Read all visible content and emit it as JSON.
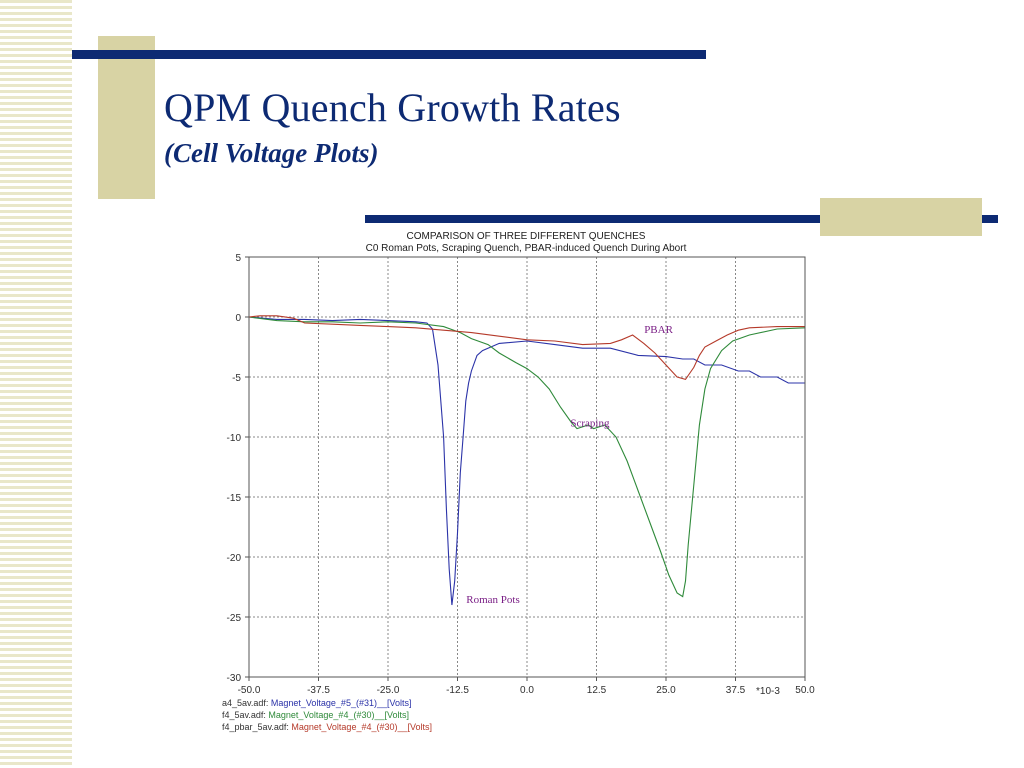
{
  "slide": {
    "title": "QPM Quench Growth Rates",
    "subtitle": "(Cell Voltage Plots)"
  },
  "chart_data": {
    "type": "line",
    "title": "COMPARISON OF THREE DIFFERENT QUENCHES",
    "subtitle": "C0 Roman Pots, Scraping Quench, PBAR-induced Quench During Abort",
    "xlabel": "",
    "ylabel": "",
    "x_multiplier_label": "*10-3",
    "xlim": [
      -50,
      50
    ],
    "ylim": [
      -30,
      5
    ],
    "xticks": [
      -50,
      -37.5,
      -25,
      -12.5,
      0,
      12.5,
      25,
      37.5,
      50
    ],
    "xtick_labels": [
      "-50.0",
      "-37.5",
      "-25.0",
      "-12.5",
      "0.0",
      "12.5",
      "25.0",
      "37.5",
      "50.0"
    ],
    "yticks": [
      5,
      0,
      -5,
      -10,
      -15,
      -20,
      -25,
      -30
    ],
    "ytick_labels": [
      "5",
      "0",
      "-5",
      "-10",
      "-15",
      "-20",
      "-25",
      "-30"
    ],
    "grid": true,
    "legend_position": "bottom-left",
    "series": [
      {
        "name": "a4_5av.adf: Magnet_Voltage_#5_(#31)__[Volts]",
        "legend_file": "a4_5av.adf:",
        "legend_channel": "Magnet_Voltage_#5_(#31)__[Volts]",
        "annotation": "Roman Pots",
        "color": "#2b33a8",
        "points": [
          [
            -50,
            0
          ],
          [
            -45,
            -0.2
          ],
          [
            -40,
            -0.2
          ],
          [
            -35,
            -0.3
          ],
          [
            -30,
            -0.2
          ],
          [
            -25,
            -0.3
          ],
          [
            -20,
            -0.4
          ],
          [
            -18,
            -0.5
          ],
          [
            -17,
            -1
          ],
          [
            -16,
            -4
          ],
          [
            -15,
            -10
          ],
          [
            -14.5,
            -16
          ],
          [
            -14,
            -21
          ],
          [
            -13.5,
            -24
          ],
          [
            -13,
            -22
          ],
          [
            -12.5,
            -18
          ],
          [
            -12,
            -13
          ],
          [
            -11.5,
            -10
          ],
          [
            -11,
            -7
          ],
          [
            -10.5,
            -5.5
          ],
          [
            -10,
            -4.5
          ],
          [
            -9,
            -3.2
          ],
          [
            -8,
            -2.8
          ],
          [
            -5,
            -2.2
          ],
          [
            0,
            -2
          ],
          [
            5,
            -2.3
          ],
          [
            10,
            -2.6
          ],
          [
            15,
            -2.6
          ],
          [
            20,
            -3.2
          ],
          [
            25,
            -3.3
          ],
          [
            28,
            -3.5
          ],
          [
            30,
            -3.5
          ],
          [
            32,
            -4
          ],
          [
            35,
            -4
          ],
          [
            38,
            -4.5
          ],
          [
            40,
            -4.5
          ],
          [
            42,
            -5
          ],
          [
            45,
            -5
          ],
          [
            47,
            -5.5
          ],
          [
            50,
            -5.5
          ]
        ]
      },
      {
        "name": "f4_5av.adf: Magnet_Voltage_#4_(#30)__[Volts]",
        "legend_file": "f4_5av.adf:",
        "legend_channel": "Magnet_Voltage_#4_(#30)__[Volts]",
        "annotation": "Scraping",
        "color": "#2f8a3a",
        "points": [
          [
            -50,
            0
          ],
          [
            -45,
            -0.3
          ],
          [
            -40,
            -0.4
          ],
          [
            -35,
            -0.4
          ],
          [
            -30,
            -0.5
          ],
          [
            -25,
            -0.4
          ],
          [
            -20,
            -0.5
          ],
          [
            -15,
            -0.8
          ],
          [
            -12,
            -1.3
          ],
          [
            -10,
            -1.8
          ],
          [
            -7,
            -2.3
          ],
          [
            -5,
            -3
          ],
          [
            -2,
            -3.8
          ],
          [
            0,
            -4.3
          ],
          [
            2,
            -5
          ],
          [
            4,
            -6
          ],
          [
            6,
            -7.5
          ],
          [
            8,
            -8.8
          ],
          [
            9,
            -9.3
          ],
          [
            11,
            -9
          ],
          [
            12,
            -9.3
          ],
          [
            14,
            -9
          ],
          [
            16,
            -10
          ],
          [
            18,
            -12
          ],
          [
            20,
            -14.5
          ],
          [
            22,
            -17
          ],
          [
            24,
            -19.5
          ],
          [
            25.5,
            -21.5
          ],
          [
            27,
            -23
          ],
          [
            28,
            -23.3
          ],
          [
            28.5,
            -22
          ],
          [
            29,
            -19
          ],
          [
            30,
            -14
          ],
          [
            31,
            -9
          ],
          [
            32,
            -6
          ],
          [
            33,
            -4.3
          ],
          [
            35,
            -2.8
          ],
          [
            37,
            -2
          ],
          [
            40,
            -1.5
          ],
          [
            45,
            -1
          ],
          [
            50,
            -0.9
          ]
        ]
      },
      {
        "name": "f4_pbar_5av.adf: Magnet_Voltage_#4_(#30)__[Volts]",
        "legend_file": "f4_pbar_5av.adf:",
        "legend_channel": "Magnet_Voltage_#4_(#30)__[Volts]",
        "annotation": "PBAR",
        "color": "#b53a2a",
        "points": [
          [
            -50,
            0
          ],
          [
            -48,
            0.1
          ],
          [
            -45,
            0.1
          ],
          [
            -42,
            -0.1
          ],
          [
            -40,
            -0.5
          ],
          [
            -35,
            -0.6
          ],
          [
            -30,
            -0.7
          ],
          [
            -25,
            -0.8
          ],
          [
            -20,
            -0.9
          ],
          [
            -15,
            -1.1
          ],
          [
            -10,
            -1.3
          ],
          [
            -5,
            -1.6
          ],
          [
            0,
            -1.9
          ],
          [
            5,
            -2
          ],
          [
            10,
            -2.3
          ],
          [
            15,
            -2.2
          ],
          [
            17,
            -1.9
          ],
          [
            19,
            -1.5
          ],
          [
            21,
            -2.2
          ],
          [
            23,
            -3
          ],
          [
            25,
            -4
          ],
          [
            27,
            -5
          ],
          [
            28.5,
            -5.2
          ],
          [
            30,
            -4.2
          ],
          [
            31,
            -3.2
          ],
          [
            32,
            -2.5
          ],
          [
            34,
            -2
          ],
          [
            36,
            -1.5
          ],
          [
            38,
            -1.1
          ],
          [
            40,
            -0.9
          ],
          [
            45,
            -0.8
          ],
          [
            50,
            -0.8
          ]
        ]
      }
    ]
  }
}
